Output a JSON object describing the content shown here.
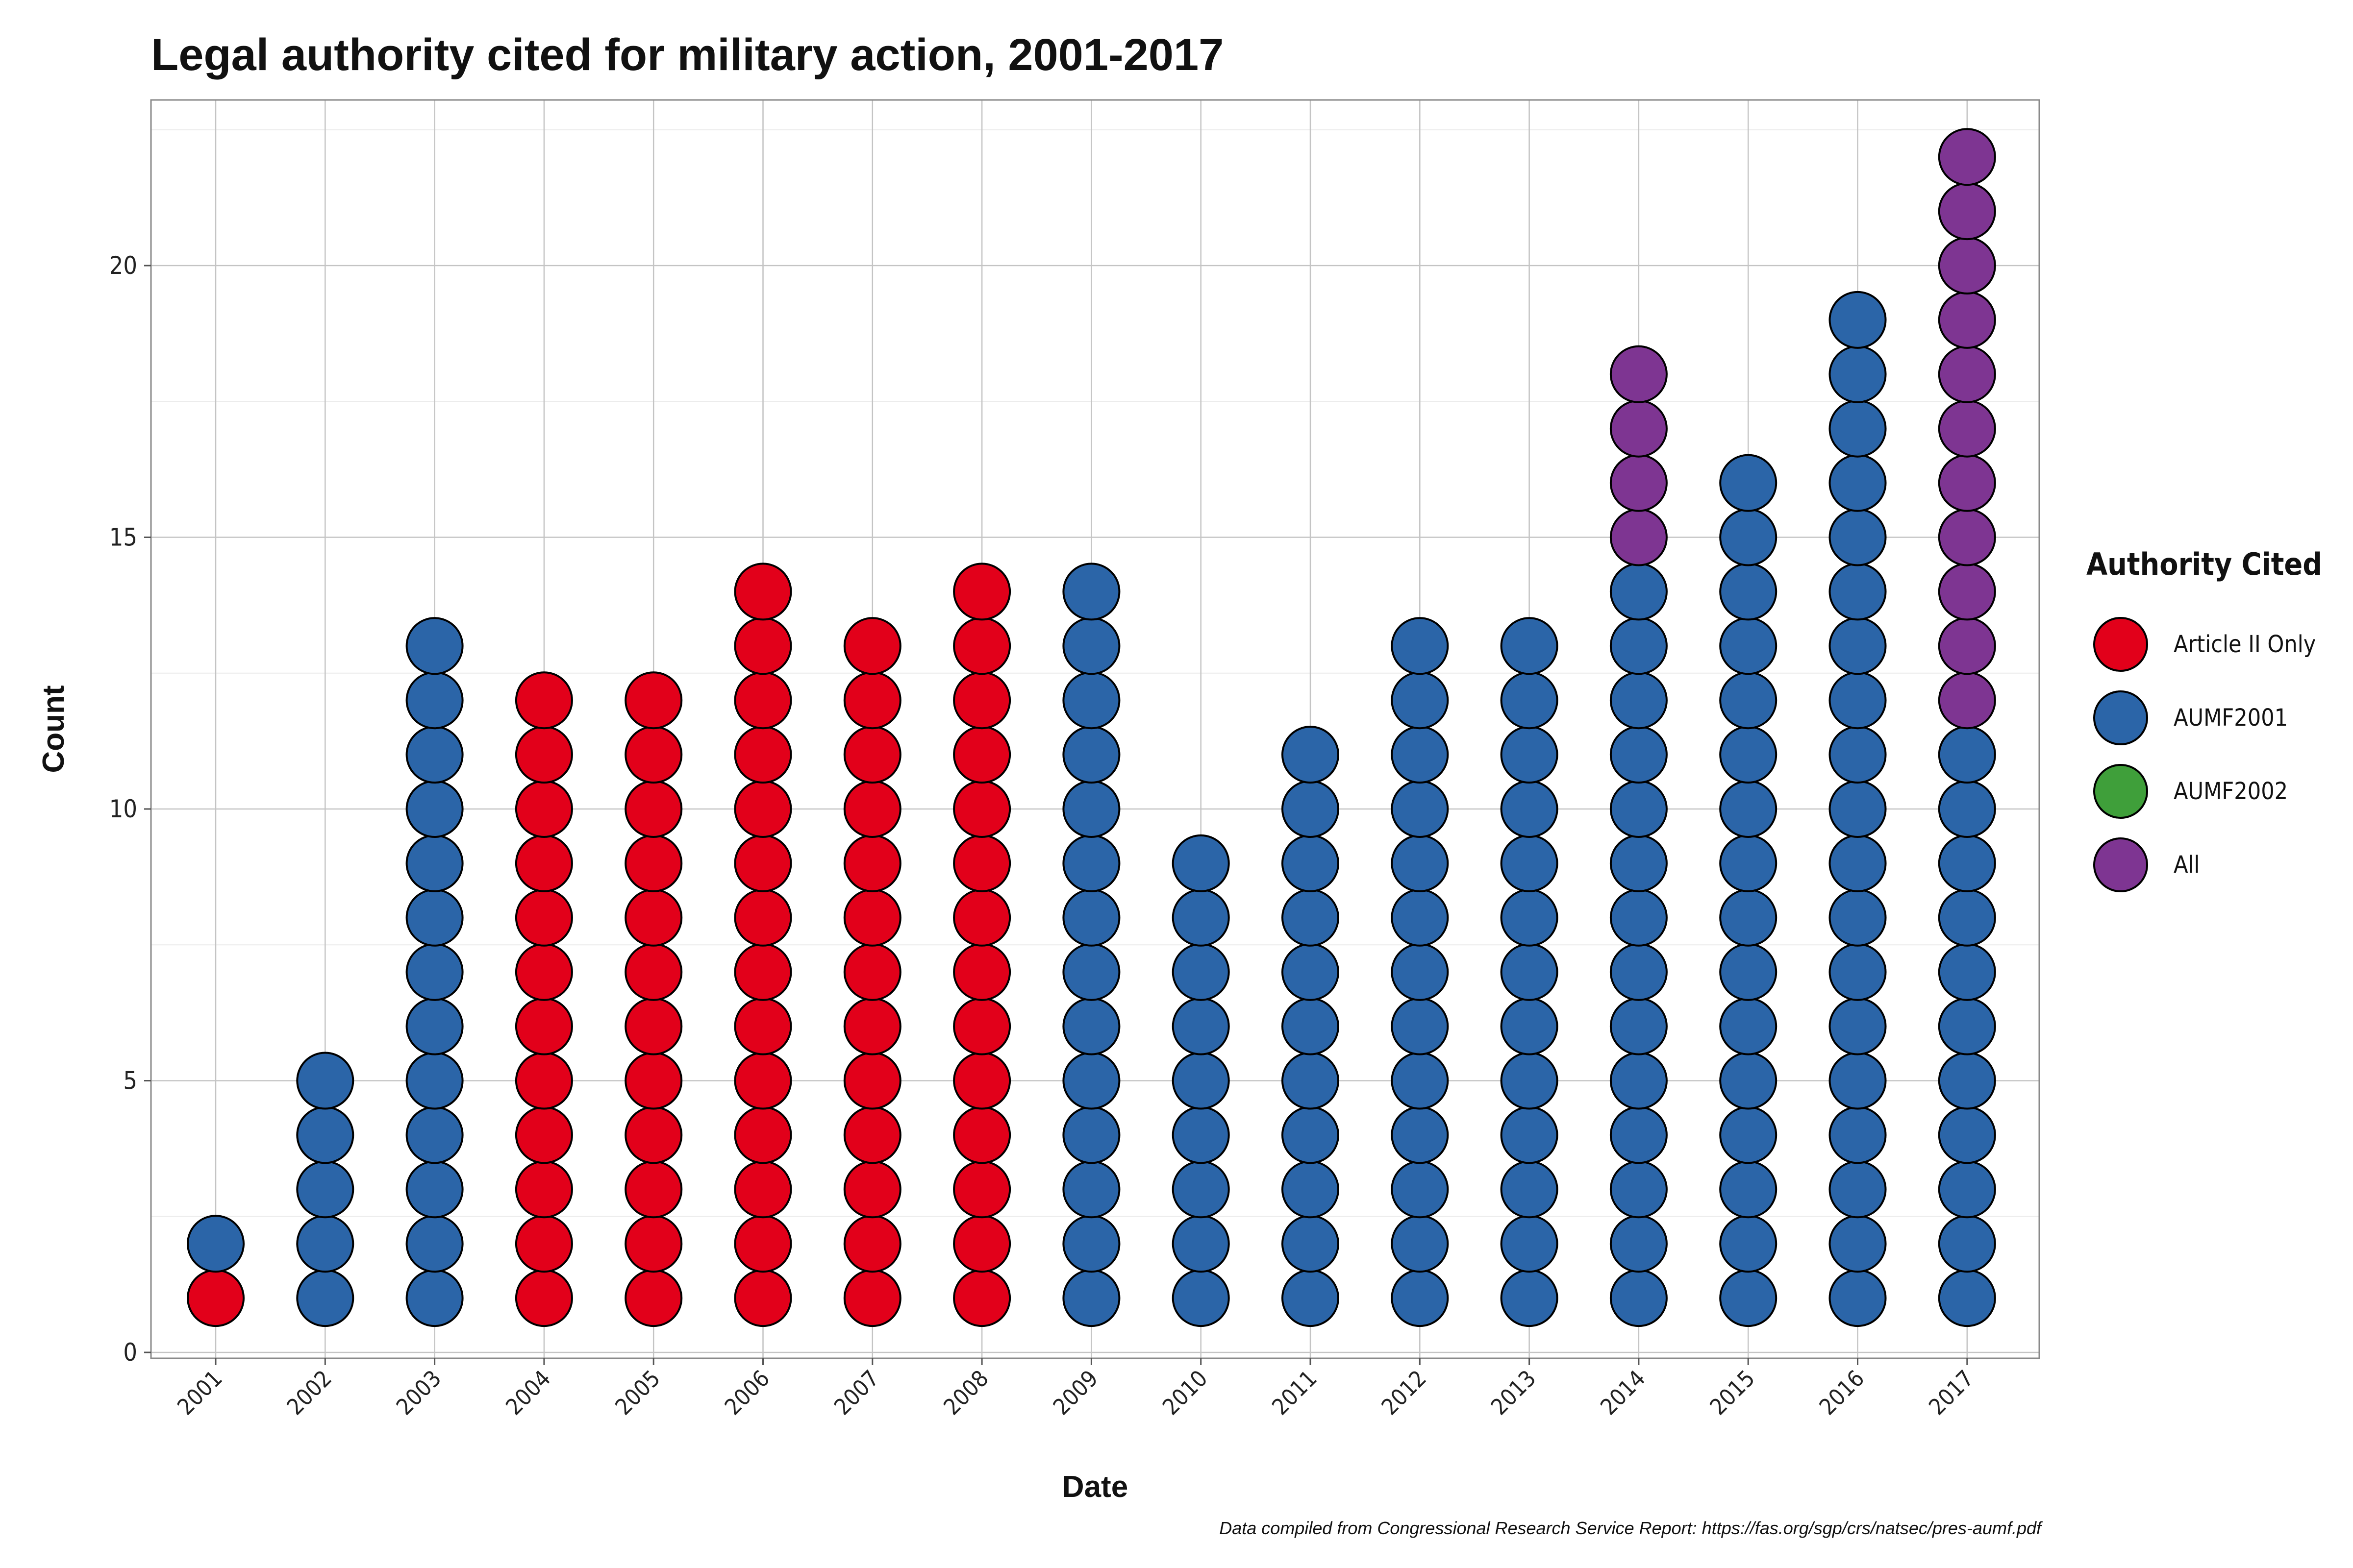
{
  "chart_data": {
    "type": "scatter",
    "subtype": "dot-plot",
    "title": "Legal authority cited for military action, 2001-2017",
    "xlabel": "Date",
    "ylabel": "Count",
    "ylim": [
      0,
      23
    ],
    "yticks": [
      0,
      5,
      10,
      15,
      20
    ],
    "grid": true,
    "legend_title": "Authority Cited",
    "legend_position": "right",
    "categories": [
      "2001",
      "2002",
      "2003",
      "2004",
      "2005",
      "2006",
      "2007",
      "2008",
      "2009",
      "2010",
      "2011",
      "2012",
      "2013",
      "2014",
      "2015",
      "2016",
      "2017"
    ],
    "series": [
      {
        "name": "Article II Only",
        "color": "#E2001A",
        "values": [
          1,
          0,
          0,
          12,
          12,
          14,
          13,
          14,
          0,
          0,
          0,
          0,
          0,
          0,
          0,
          0,
          0
        ]
      },
      {
        "name": "AUMF2001",
        "color": "#2B65A8",
        "values": [
          1,
          5,
          13,
          0,
          0,
          0,
          0,
          0,
          14,
          9,
          11,
          13,
          13,
          14,
          16,
          19,
          11
        ]
      },
      {
        "name": "AUMF2002",
        "color": "#3F9F3A",
        "values": [
          0,
          0,
          0,
          0,
          0,
          0,
          0,
          0,
          0,
          0,
          0,
          0,
          0,
          0,
          0,
          0,
          0
        ]
      },
      {
        "name": "All",
        "color": "#7E3592",
        "values": [
          0,
          0,
          0,
          0,
          0,
          0,
          0,
          0,
          0,
          0,
          0,
          0,
          0,
          4,
          0,
          0,
          11
        ]
      }
    ],
    "caption": "Data compiled from Congressional Research Service Report: https://fas.org/sgp/crs/natsec/pres-aumf.pdf"
  }
}
